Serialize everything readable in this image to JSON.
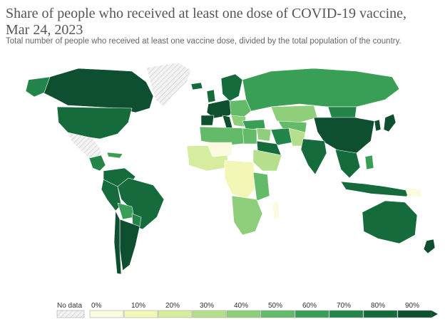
{
  "title": "Share of people who received at least one dose of COVID-19 vaccine, Mar 24, 2023",
  "subtitle": "Total number of people who received at least one vaccine dose, divided by the total population of the country.",
  "legend": {
    "no_data_label": "No data",
    "ticks": [
      "0%",
      "10%",
      "20%",
      "30%",
      "40%",
      "50%",
      "60%",
      "70%",
      "80%",
      "90%"
    ],
    "colors": [
      "#fbfbe0",
      "#f2f7b8",
      "#d6eda0",
      "#b5df8d",
      "#8fcf7b",
      "#63bb6a",
      "#3a9f56",
      "#23854a",
      "#156b3c",
      "#0d4f2e"
    ],
    "no_data_color": "#e8e8e8"
  },
  "colors": {
    "water": "#ffffff",
    "border": "#ffffff",
    "no_data_hatch": "#c8c8c8"
  }
}
